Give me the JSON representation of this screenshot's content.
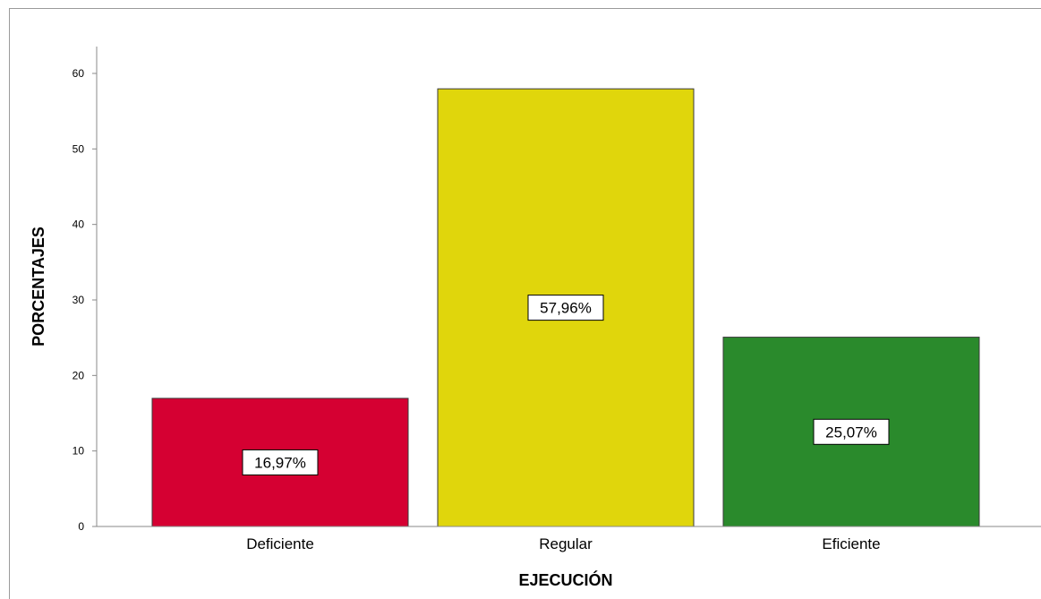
{
  "chart_data": {
    "type": "bar",
    "categories": [
      "Deficiente",
      "Regular",
      "Eficiente"
    ],
    "values": [
      16.97,
      57.96,
      25.07
    ],
    "data_labels": [
      "16,97%",
      "57,96%",
      "25,07%"
    ],
    "colors": [
      "#d50032",
      "#e0d60c",
      "#2a8a2c"
    ],
    "xlabel": "EJECUCIÓN",
    "ylabel": "PORCENTAJES",
    "ylim": [
      0,
      60
    ],
    "yticks": [
      "0",
      "10",
      "20",
      "30",
      "40",
      "50",
      "60"
    ],
    "grid": false,
    "legend": "none"
  }
}
